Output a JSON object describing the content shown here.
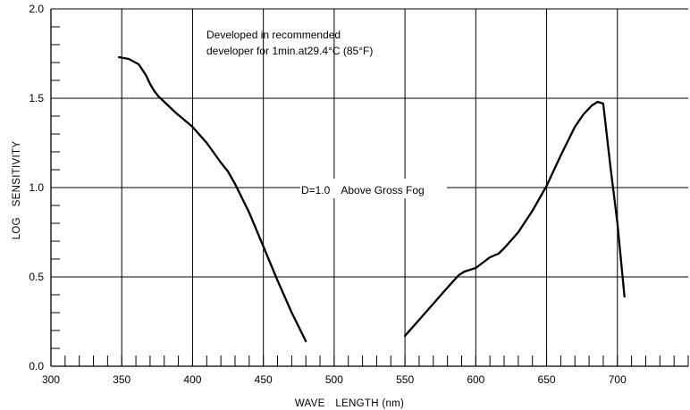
{
  "chart_data": {
    "type": "line",
    "xlabel": "WAVE　LENGTH (nm)",
    "ylabel": "LOG　SENSITIVITY",
    "xlim": [
      300,
      750
    ],
    "ylim": [
      0.0,
      2.0
    ],
    "x_ticks": [
      300,
      350,
      400,
      450,
      500,
      550,
      600,
      650,
      700
    ],
    "x_tick_labels": [
      "300",
      "350",
      "400",
      "450",
      "500",
      "550",
      "600",
      "650",
      "700"
    ],
    "x_minor_step": 10,
    "y_ticks": [
      0.0,
      0.5,
      1.0,
      1.5,
      2.0
    ],
    "y_tick_labels": [
      "0.0",
      "0.5",
      "1.0",
      "1.5",
      "2.0"
    ],
    "y_minor_step": 0.1,
    "grid": true,
    "annotations": [
      "Developed in recommended",
      "developer for 1min.at29.4°C (85°F)",
      "D=1.0　Above Gross Fog"
    ],
    "series": [
      {
        "x": [
          348,
          355,
          362,
          367,
          370,
          373,
          376,
          380,
          388,
          400,
          410,
          420,
          425,
          430,
          435,
          440,
          450,
          460,
          470,
          480
        ],
        "y": [
          1.73,
          1.72,
          1.69,
          1.63,
          1.58,
          1.54,
          1.51,
          1.48,
          1.42,
          1.34,
          1.25,
          1.14,
          1.09,
          1.02,
          0.94,
          0.86,
          0.67,
          0.48,
          0.3,
          0.14
        ]
      },
      {
        "x": [
          550,
          560,
          570,
          580,
          588,
          592,
          596,
          600,
          605,
          610,
          616,
          620,
          630,
          640,
          650,
          660,
          670,
          676,
          682,
          686,
          690,
          695,
          700,
          705
        ],
        "y": [
          0.17,
          0.26,
          0.35,
          0.44,
          0.51,
          0.53,
          0.54,
          0.55,
          0.58,
          0.61,
          0.63,
          0.66,
          0.75,
          0.87,
          1.01,
          1.18,
          1.34,
          1.41,
          1.46,
          1.48,
          1.47,
          1.12,
          0.8,
          0.39
        ]
      }
    ]
  }
}
